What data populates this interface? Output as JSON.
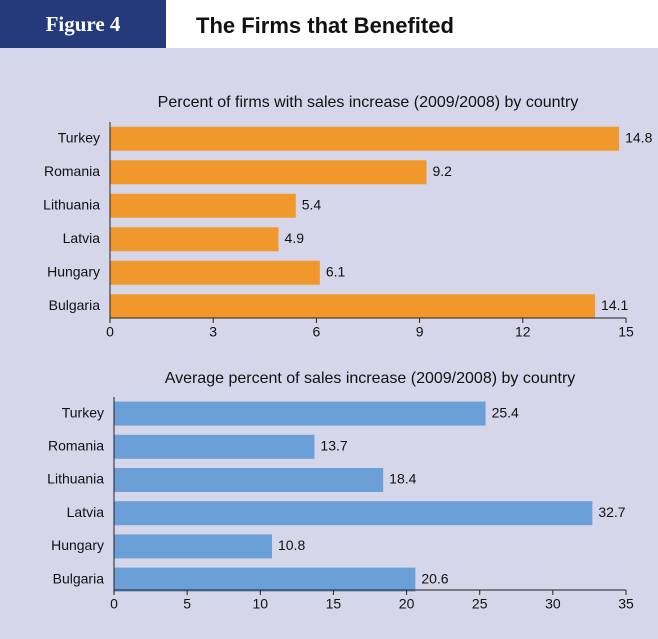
{
  "figure": {
    "label": "Figure 4",
    "title": "The Firms that Benefited"
  },
  "chart_data": [
    {
      "type": "hbar",
      "title": "Percent of firms with sales increase (2009/2008) by country",
      "categories": [
        "Turkey",
        "Romania",
        "Lithuania",
        "Latvia",
        "Hungary",
        "Bulgaria"
      ],
      "values": [
        14.8,
        9.2,
        5.4,
        4.9,
        6.1,
        14.1
      ],
      "color": "#f0982b",
      "xlim": [
        0,
        15
      ],
      "xticks": [
        0,
        3,
        6,
        9,
        12,
        15
      ]
    },
    {
      "type": "hbar",
      "title": "Average percent of sales increase (2009/2008) by country",
      "categories": [
        "Turkey",
        "Romania",
        "Lithuania",
        "Latvia",
        "Hungary",
        "Bulgaria"
      ],
      "values": [
        25.4,
        13.7,
        18.4,
        32.7,
        10.8,
        20.6
      ],
      "color": "#6a9fd8",
      "xlim": [
        0,
        35
      ],
      "xticks": [
        0,
        5,
        10,
        15,
        20,
        25,
        30,
        35
      ]
    }
  ]
}
